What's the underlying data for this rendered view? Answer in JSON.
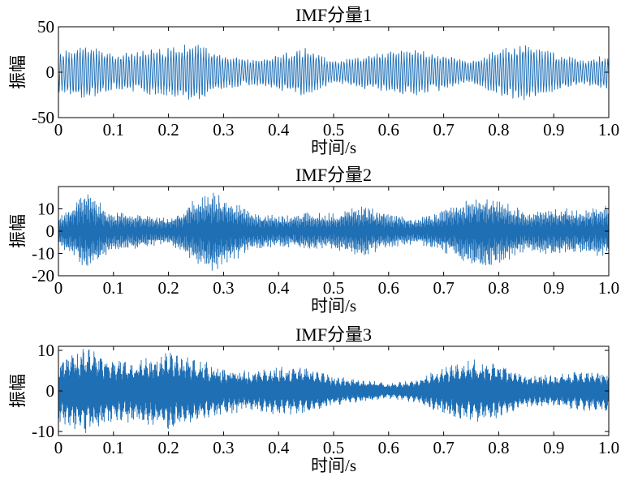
{
  "chart_data": [
    {
      "type": "line",
      "title": "IMF分量1",
      "xlabel": "时间/s",
      "ylabel": "振幅",
      "xlim": [
        0,
        1.0
      ],
      "ylim": [
        -50,
        50
      ],
      "xticks": [
        "0",
        "0.1",
        "0.2",
        "0.3",
        "0.4",
        "0.5",
        "0.6",
        "0.7",
        "0.8",
        "0.9",
        "1.0"
      ],
      "yticks": [
        "50",
        "0",
        "-50"
      ],
      "grid": false,
      "line_color": "#1f6fb5",
      "series": [
        {
          "x": [
            0,
            0.05,
            0.1,
            0.15,
            0.2,
            0.25,
            0.3,
            0.35,
            0.4,
            0.45,
            0.5,
            0.55,
            0.6,
            0.65,
            0.7,
            0.75,
            0.8,
            0.85,
            0.9,
            0.95,
            1.0
          ],
          "envelope": [
            22,
            32,
            20,
            24,
            28,
            33,
            20,
            14,
            20,
            28,
            12,
            18,
            24,
            26,
            20,
            12,
            26,
            33,
            22,
            14,
            20
          ]
        }
      ]
    },
    {
      "type": "line",
      "title": "IMF分量2",
      "xlabel": "时间/s",
      "ylabel": "振幅",
      "xlim": [
        0,
        1.0
      ],
      "ylim": [
        -20,
        20
      ],
      "xticks": [
        "0",
        "0.1",
        "0.2",
        "0.3",
        "0.4",
        "0.5",
        "0.6",
        "0.7",
        "0.8",
        "0.9",
        "1.0"
      ],
      "yticks": [
        "10",
        "0",
        "-10",
        "-20"
      ],
      "grid": false,
      "line_color": "#1f6fb5",
      "series": [
        {
          "x": [
            0,
            0.05,
            0.1,
            0.15,
            0.2,
            0.25,
            0.28,
            0.3,
            0.35,
            0.4,
            0.45,
            0.5,
            0.55,
            0.6,
            0.65,
            0.7,
            0.75,
            0.78,
            0.8,
            0.85,
            0.9,
            0.95,
            1.0
          ],
          "envelope": [
            6,
            18,
            9,
            8,
            6,
            15,
            19,
            16,
            9,
            7,
            9,
            8,
            12,
            8,
            6,
            10,
            15,
            17,
            15,
            9,
            11,
            10,
            12
          ]
        }
      ]
    },
    {
      "type": "line",
      "title": "IMF分量3",
      "xlabel": "时间/s",
      "ylabel": "振幅",
      "xlim": [
        0,
        1.0
      ],
      "ylim": [
        -11,
        11
      ],
      "xticks": [
        "0",
        "0.1",
        "0.2",
        "0.3",
        "0.4",
        "0.5",
        "0.6",
        "0.7",
        "0.8",
        "0.9",
        "1.0"
      ],
      "yticks": [
        "10",
        "0",
        "-10"
      ],
      "grid": false,
      "line_color": "#1f6fb5",
      "series": [
        {
          "x": [
            0,
            0.05,
            0.1,
            0.15,
            0.2,
            0.25,
            0.3,
            0.35,
            0.4,
            0.45,
            0.5,
            0.55,
            0.6,
            0.65,
            0.7,
            0.75,
            0.8,
            0.85,
            0.9,
            0.95,
            1.0
          ],
          "envelope": [
            8,
            11,
            8,
            8,
            10,
            8,
            6,
            5,
            6,
            6,
            4,
            3,
            2,
            3,
            6,
            8,
            7,
            4,
            4,
            5,
            5
          ]
        }
      ]
    }
  ]
}
